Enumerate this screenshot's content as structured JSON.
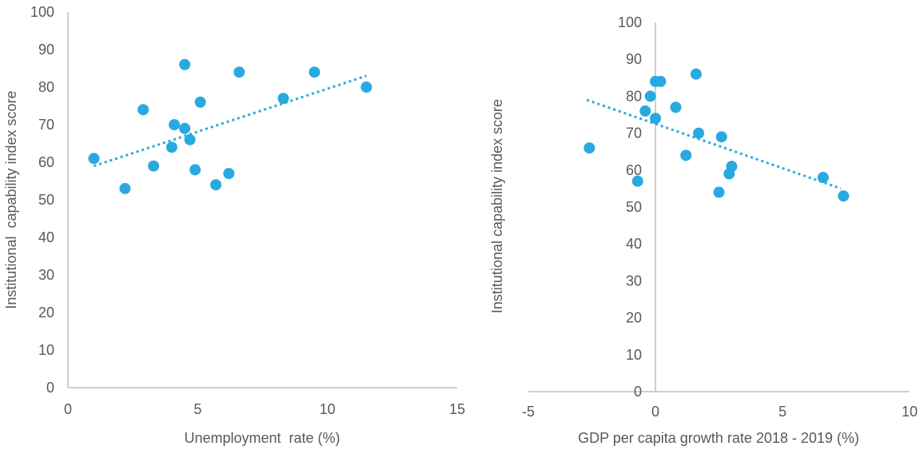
{
  "chart_data": [
    {
      "type": "scatter",
      "xlabel": "Unemployment  rate (%)",
      "ylabel": "Institutional  capability index score",
      "xlim": [
        0,
        15
      ],
      "ylim": [
        0,
        100
      ],
      "xticks": [
        "0",
        "5",
        "10",
        "15"
      ],
      "yticks": [
        "0",
        "10",
        "20",
        "30",
        "40",
        "50",
        "60",
        "70",
        "80",
        "90",
        "100"
      ],
      "marker_color": "#29A9E1",
      "trendline": {
        "style": "dotted",
        "color": "#29A9E1",
        "x": [
          1.0,
          11.5
        ],
        "y": [
          59,
          83
        ]
      },
      "points": [
        {
          "x": 1.0,
          "y": 61
        },
        {
          "x": 2.2,
          "y": 53
        },
        {
          "x": 2.9,
          "y": 74
        },
        {
          "x": 3.3,
          "y": 59
        },
        {
          "x": 4.0,
          "y": 64
        },
        {
          "x": 4.1,
          "y": 70
        },
        {
          "x": 4.5,
          "y": 86
        },
        {
          "x": 4.5,
          "y": 69
        },
        {
          "x": 4.7,
          "y": 66
        },
        {
          "x": 4.9,
          "y": 58
        },
        {
          "x": 5.1,
          "y": 76
        },
        {
          "x": 5.7,
          "y": 54
        },
        {
          "x": 6.2,
          "y": 57
        },
        {
          "x": 6.6,
          "y": 84
        },
        {
          "x": 8.3,
          "y": 77
        },
        {
          "x": 9.5,
          "y": 84
        },
        {
          "x": 11.5,
          "y": 80
        }
      ]
    },
    {
      "type": "scatter",
      "xlabel": "GDP per capita growth rate 2018 - 2019 (%)",
      "ylabel": "Institutional capability index score",
      "xlim": [
        -5,
        10
      ],
      "ylim": [
        0,
        100
      ],
      "xticks": [
        "-5",
        "0",
        "5",
        "10"
      ],
      "yticks": [
        "0",
        "10",
        "20",
        "30",
        "40",
        "50",
        "60",
        "70",
        "80",
        "90",
        "100"
      ],
      "marker_color": "#29A9E1",
      "trendline": {
        "style": "dotted",
        "color": "#29A9E1",
        "x": [
          -2.7,
          7.3
        ],
        "y": [
          79,
          55
        ]
      },
      "points": [
        {
          "x": -2.6,
          "y": 66
        },
        {
          "x": -0.7,
          "y": 57
        },
        {
          "x": -0.4,
          "y": 76
        },
        {
          "x": -0.2,
          "y": 80
        },
        {
          "x": 0.0,
          "y": 74
        },
        {
          "x": 0.0,
          "y": 84
        },
        {
          "x": 0.2,
          "y": 84
        },
        {
          "x": 0.8,
          "y": 77
        },
        {
          "x": 1.2,
          "y": 64
        },
        {
          "x": 1.6,
          "y": 86
        },
        {
          "x": 1.7,
          "y": 70
        },
        {
          "x": 2.5,
          "y": 54
        },
        {
          "x": 2.6,
          "y": 69
        },
        {
          "x": 2.9,
          "y": 59
        },
        {
          "x": 3.0,
          "y": 61
        },
        {
          "x": 6.6,
          "y": 58
        },
        {
          "x": 7.4,
          "y": 53
        }
      ]
    }
  ]
}
